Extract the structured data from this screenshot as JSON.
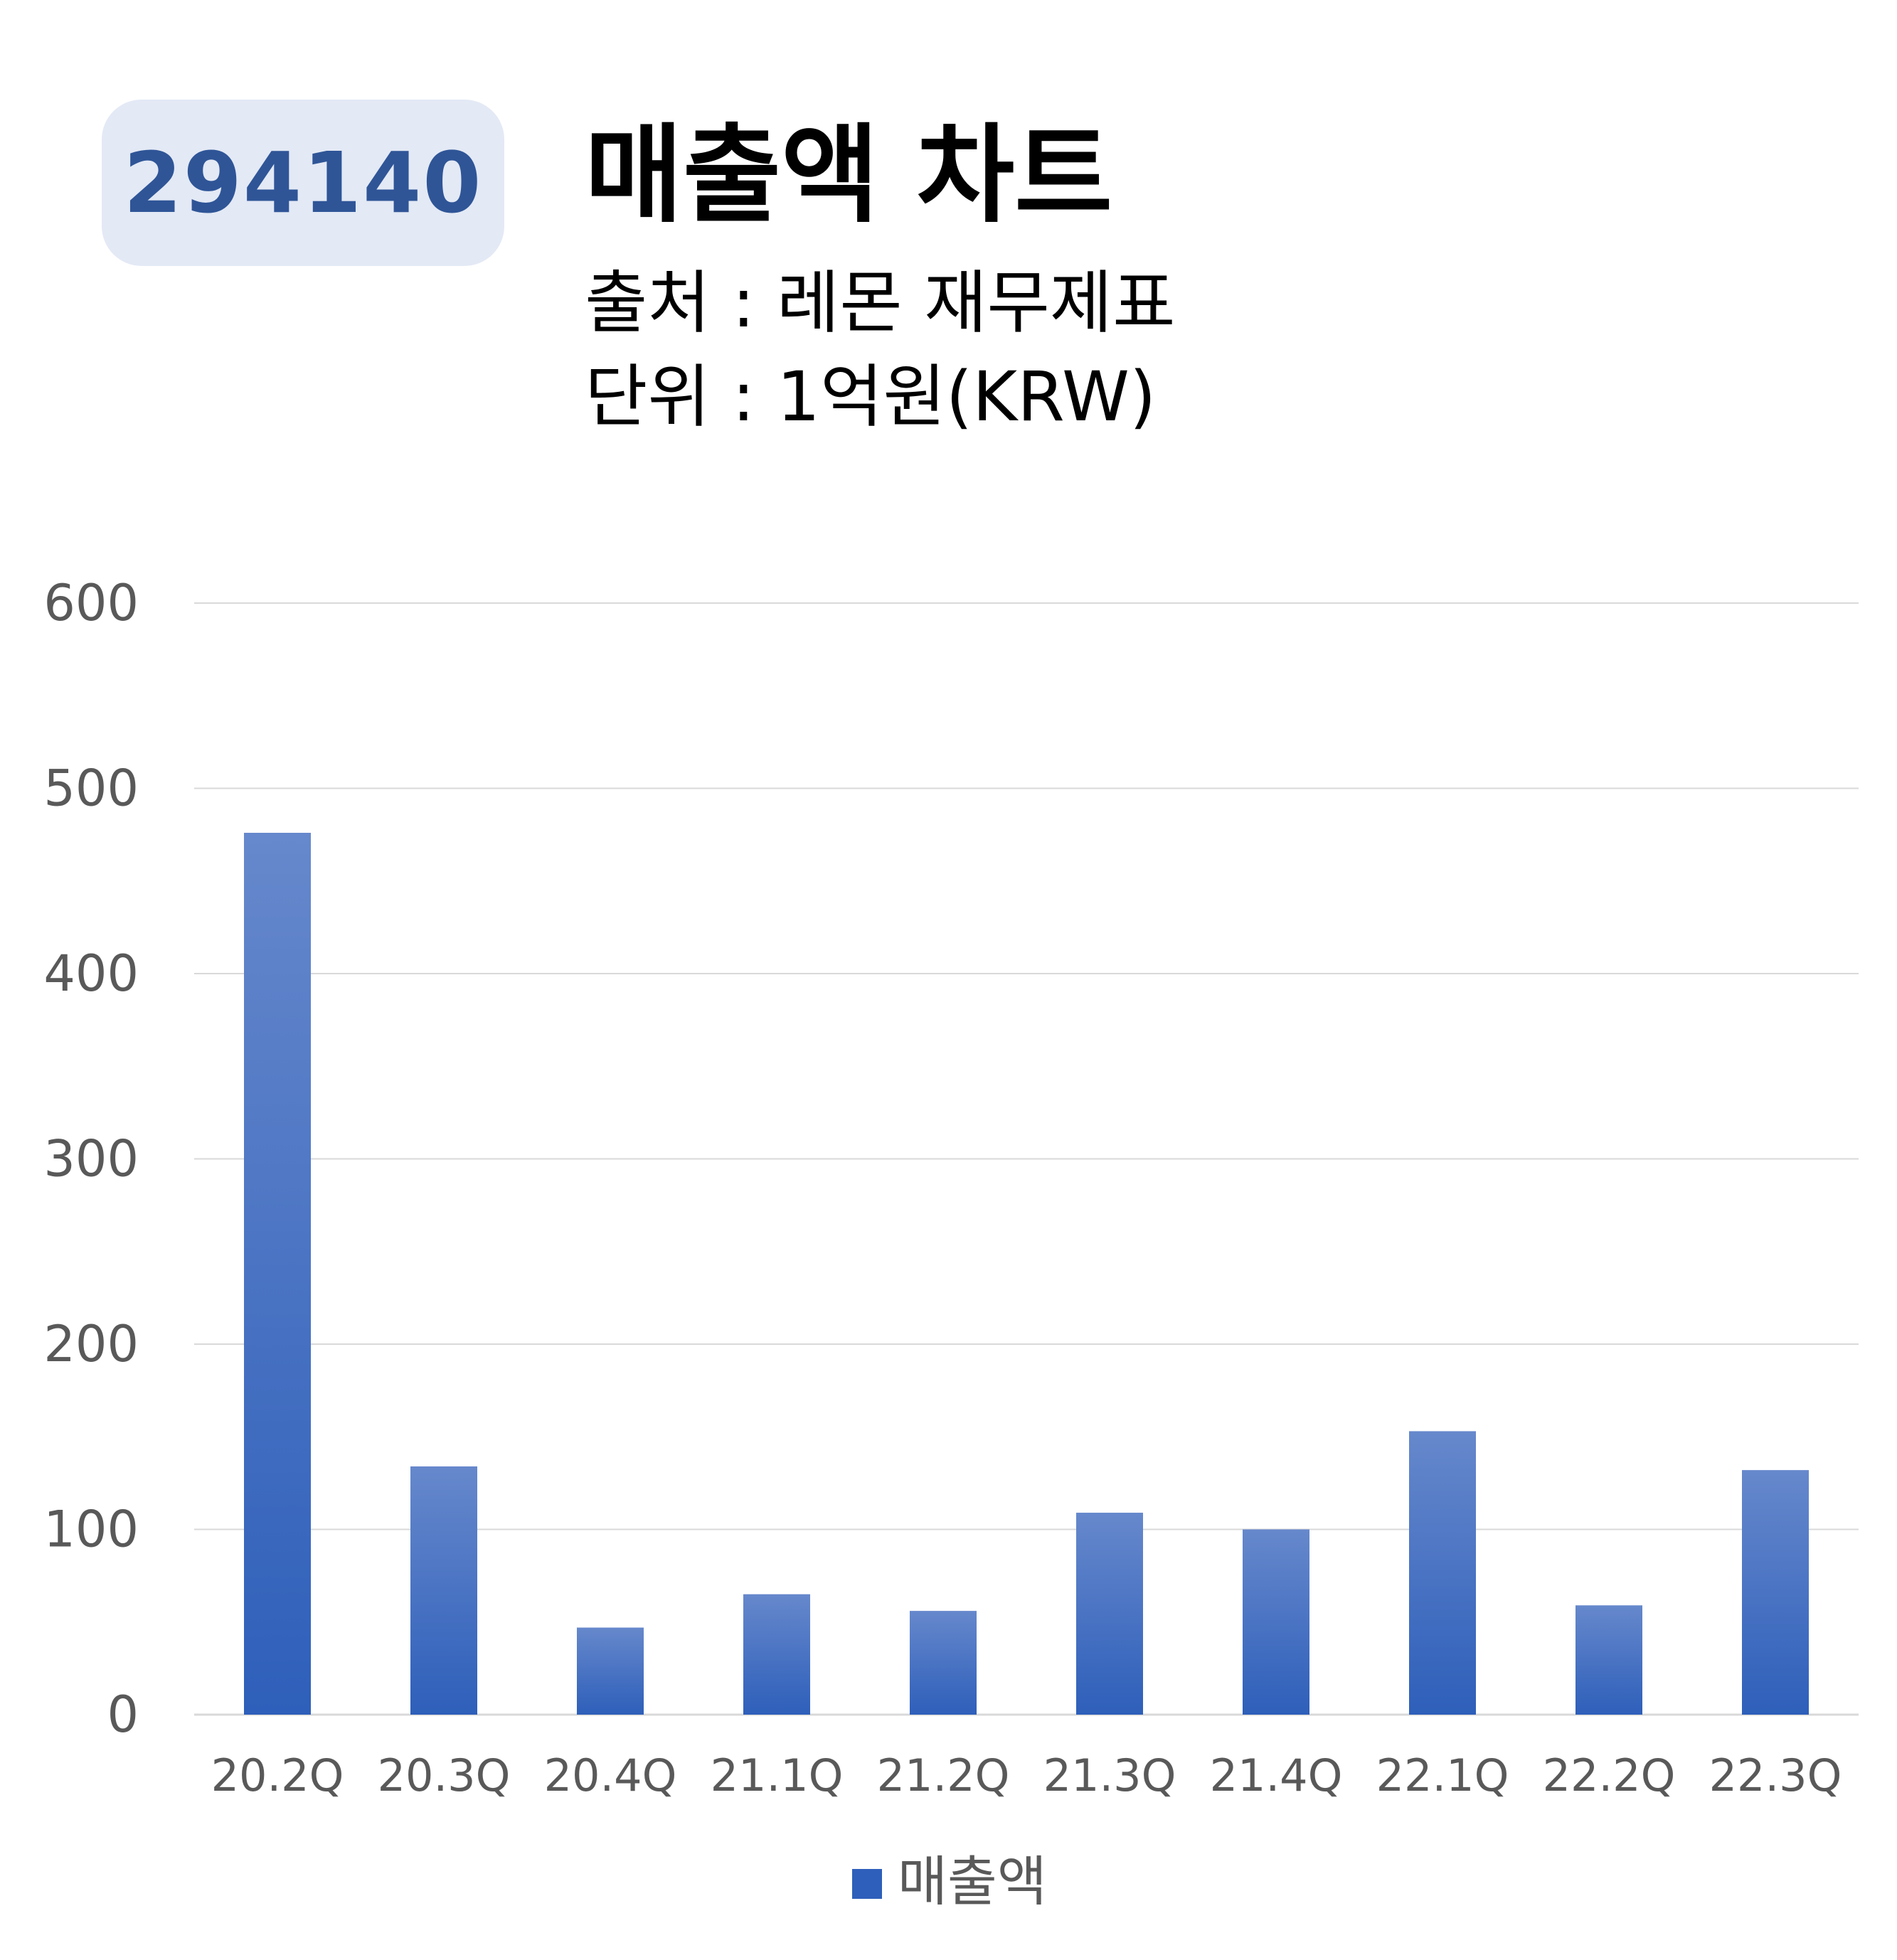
{
  "badge": {
    "code": "294140"
  },
  "header": {
    "title": "매출액 차트",
    "source": "출처 : 레몬 재무제표",
    "unit": "단위 : 1억원(KRW)"
  },
  "colors": {
    "bar_top": "#6688cc",
    "bar_bottom": "#2e5fba",
    "grid": "#d9d9d9",
    "axis_text": "#595959",
    "badge_bg": "#e3e9f5",
    "badge_text": "#2f5597"
  },
  "chart_data": {
    "type": "bar",
    "categories": [
      "20.2Q",
      "20.3Q",
      "20.4Q",
      "21.1Q",
      "21.2Q",
      "21.3Q",
      "21.4Q",
      "22.1Q",
      "22.2Q",
      "22.3Q"
    ],
    "series": [
      {
        "name": "매출액",
        "values": [
          476,
          134,
          47,
          65,
          56,
          109,
          100,
          153,
          59,
          132
        ]
      }
    ],
    "ylim": [
      0,
      600
    ],
    "yticks": [
      "0",
      "100",
      "200",
      "300",
      "400",
      "500",
      "600"
    ],
    "grid": true,
    "legend": "bottom"
  }
}
